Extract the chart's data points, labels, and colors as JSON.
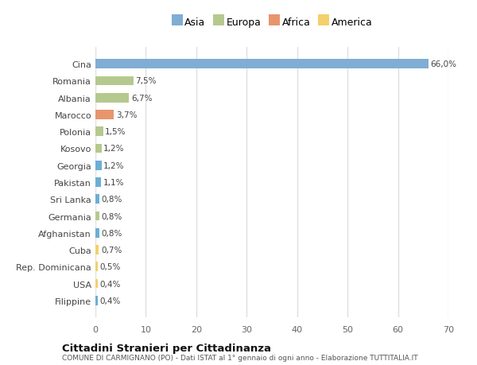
{
  "categories": [
    "Filippine",
    "USA",
    "Rep. Dominicana",
    "Cuba",
    "Afghanistan",
    "Germania",
    "Sri Lanka",
    "Pakistan",
    "Georgia",
    "Kosovo",
    "Polonia",
    "Marocco",
    "Albania",
    "Romania",
    "Cina"
  ],
  "values": [
    0.4,
    0.4,
    0.5,
    0.7,
    0.8,
    0.8,
    0.8,
    1.1,
    1.2,
    1.2,
    1.5,
    3.7,
    6.7,
    7.5,
    66.0
  ],
  "labels": [
    "0,4%",
    "0,4%",
    "0,5%",
    "0,7%",
    "0,8%",
    "0,8%",
    "0,8%",
    "1,1%",
    "1,2%",
    "1,2%",
    "1,5%",
    "3,7%",
    "6,7%",
    "7,5%",
    "66,0%"
  ],
  "colors": [
    "#6baed6",
    "#f4d06a",
    "#f4d06a",
    "#f4d06a",
    "#6baed6",
    "#b5c98e",
    "#6baed6",
    "#6baed6",
    "#6baed6",
    "#b5c98e",
    "#b5c98e",
    "#e8956d",
    "#b5c98e",
    "#b5c98e",
    "#7fadd4"
  ],
  "legend_labels": [
    "Asia",
    "Europa",
    "Africa",
    "America"
  ],
  "legend_colors": [
    "#7fadd4",
    "#b5c98e",
    "#e8956d",
    "#f4d06a"
  ],
  "title": "Cittadini Stranieri per Cittadinanza",
  "subtitle": "COMUNE DI CARMIGNANO (PO) - Dati ISTAT al 1° gennaio di ogni anno - Elaborazione TUTTITALIA.IT",
  "xlim": [
    0,
    70
  ],
  "xticks": [
    0,
    10,
    20,
    30,
    40,
    50,
    60,
    70
  ],
  "bg_color": "#ffffff",
  "plot_bg_color": "#ffffff",
  "bar_height": 0.55,
  "grid_color": "#e0e0e0"
}
